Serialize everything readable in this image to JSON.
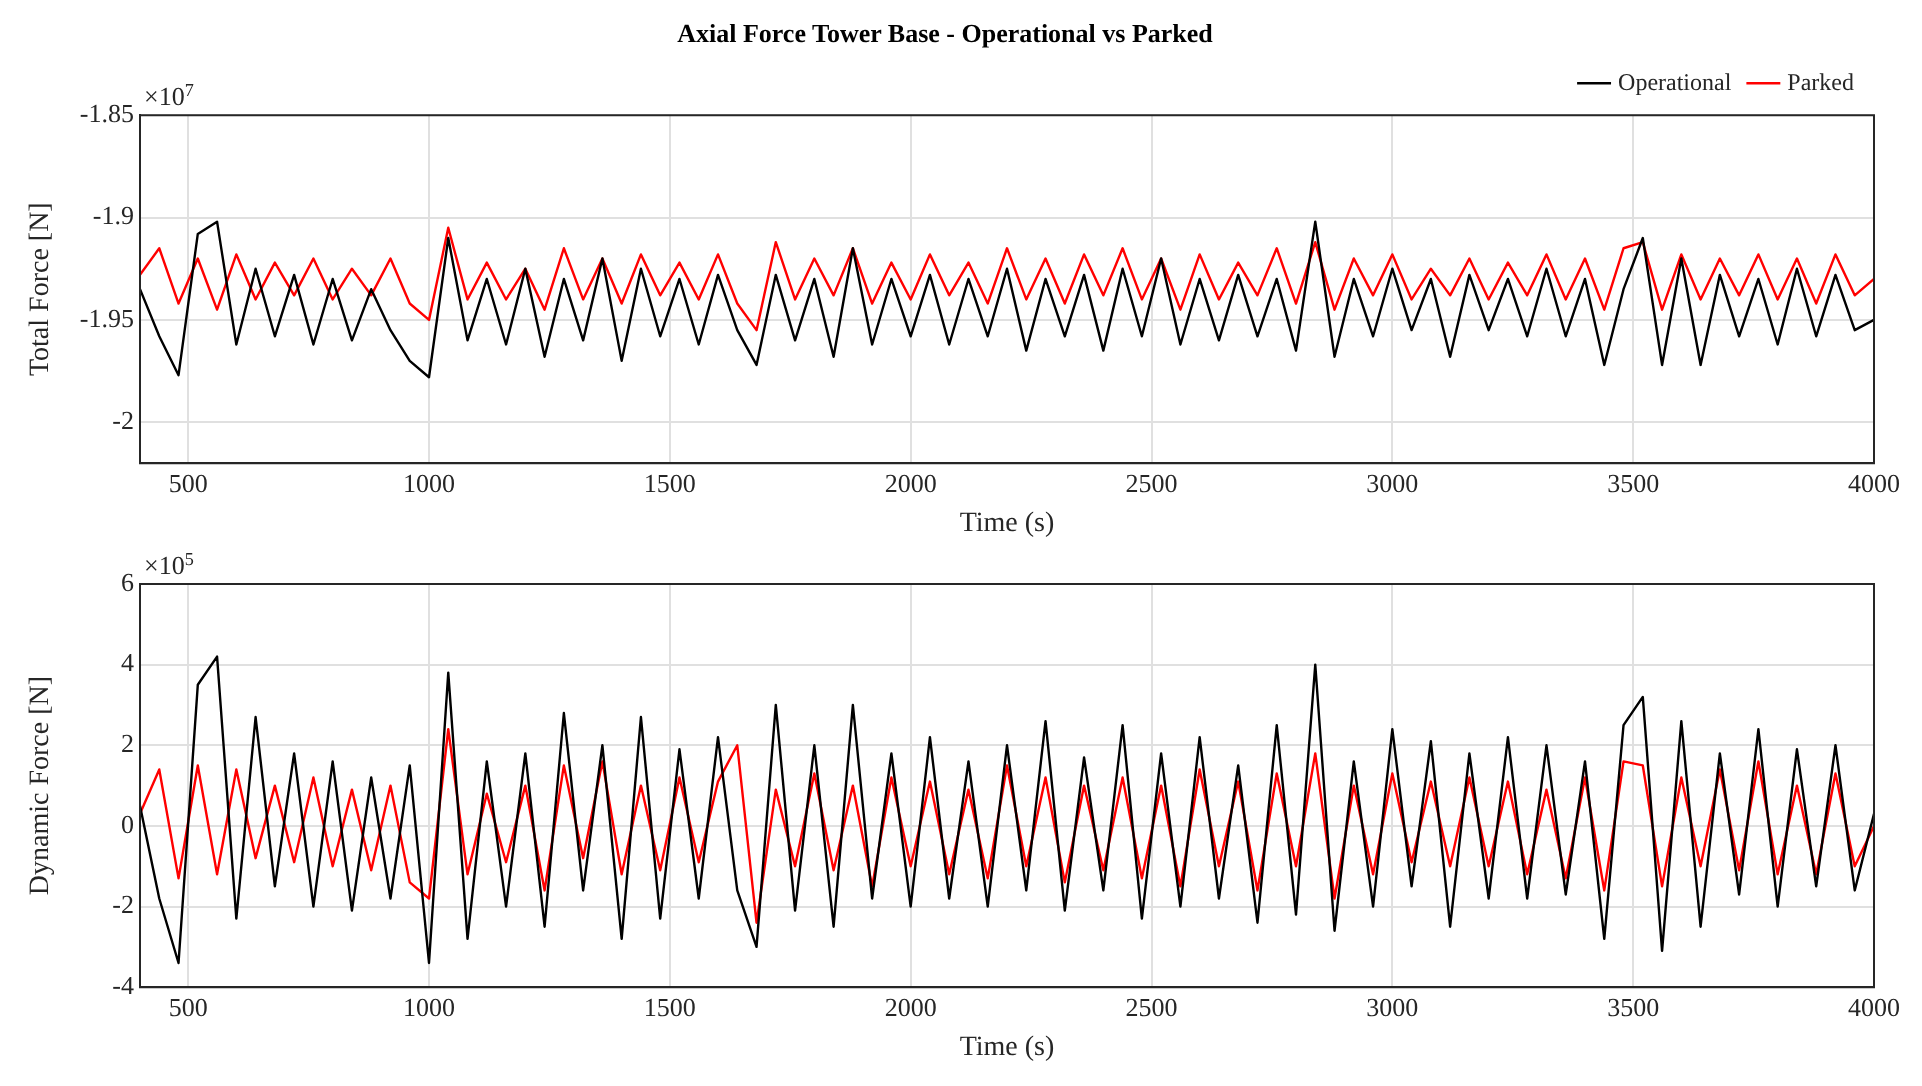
{
  "chart_data": [
    {
      "type": "line",
      "title": "Axial Force Tower Base - Operational vs Parked",
      "xlabel": "Time (s)",
      "ylabel": "Total Force [N]",
      "annotations": [
        "×10$^{7}$"
      ],
      "x": [
        400,
        440,
        480,
        520,
        560,
        600,
        640,
        680,
        720,
        760,
        800,
        840,
        880,
        920,
        960,
        1000,
        1040,
        1080,
        1120,
        1160,
        1200,
        1240,
        1280,
        1320,
        1360,
        1400,
        1440,
        1480,
        1520,
        1560,
        1600,
        1640,
        1680,
        1720,
        1760,
        1800,
        1840,
        1880,
        1920,
        1960,
        2000,
        2040,
        2080,
        2120,
        2160,
        2200,
        2240,
        2280,
        2320,
        2360,
        2400,
        2440,
        2480,
        2520,
        2560,
        2600,
        2640,
        2680,
        2720,
        2760,
        2800,
        2840,
        2880,
        2920,
        2960,
        3000,
        3040,
        3080,
        3120,
        3160,
        3200,
        3240,
        3280,
        3320,
        3360,
        3400,
        3440,
        3480,
        3520,
        3560,
        3600,
        3640,
        3680,
        3720,
        3760,
        3800,
        3840,
        3880,
        3920,
        3960,
        4000
      ],
      "series": [
        {
          "name": "Operational",
          "color": "#000000",
          "values": [
            -1.935,
            -1.958,
            -1.977,
            -1.908,
            -1.902,
            -1.962,
            -1.925,
            -1.958,
            -1.928,
            -1.962,
            -1.93,
            -1.96,
            -1.935,
            -1.955,
            -1.97,
            -1.978,
            -1.91,
            -1.96,
            -1.93,
            -1.962,
            -1.925,
            -1.968,
            -1.93,
            -1.96,
            -1.92,
            -1.97,
            -1.925,
            -1.958,
            -1.93,
            -1.962,
            -1.928,
            -1.955,
            -1.972,
            -1.928,
            -1.96,
            -1.93,
            -1.968,
            -1.915,
            -1.962,
            -1.93,
            -1.958,
            -1.928,
            -1.962,
            -1.93,
            -1.958,
            -1.925,
            -1.965,
            -1.93,
            -1.958,
            -1.928,
            -1.965,
            -1.925,
            -1.958,
            -1.92,
            -1.962,
            -1.93,
            -1.96,
            -1.928,
            -1.958,
            -1.93,
            -1.965,
            -1.902,
            -1.968,
            -1.93,
            -1.958,
            -1.925,
            -1.955,
            -1.93,
            -1.968,
            -1.928,
            -1.955,
            -1.93,
            -1.958,
            -1.925,
            -1.958,
            -1.93,
            -1.972,
            -1.935,
            -1.91,
            -1.972,
            -1.92,
            -1.972,
            -1.928,
            -1.958,
            -1.93,
            -1.962,
            -1.925,
            -1.958,
            -1.928,
            -1.955,
            -1.95
          ]
        },
        {
          "name": "Parked",
          "color": "#ff0000",
          "values": [
            -1.928,
            -1.915,
            -1.942,
            -1.92,
            -1.945,
            -1.918,
            -1.94,
            -1.922,
            -1.938,
            -1.92,
            -1.94,
            -1.925,
            -1.938,
            -1.92,
            -1.942,
            -1.95,
            -1.905,
            -1.94,
            -1.922,
            -1.94,
            -1.925,
            -1.945,
            -1.915,
            -1.94,
            -1.92,
            -1.942,
            -1.918,
            -1.938,
            -1.922,
            -1.94,
            -1.918,
            -1.942,
            -1.955,
            -1.912,
            -1.94,
            -1.92,
            -1.938,
            -1.915,
            -1.942,
            -1.922,
            -1.94,
            -1.918,
            -1.938,
            -1.922,
            -1.942,
            -1.915,
            -1.94,
            -1.92,
            -1.942,
            -1.918,
            -1.938,
            -1.915,
            -1.94,
            -1.92,
            -1.945,
            -1.918,
            -1.94,
            -1.922,
            -1.938,
            -1.915,
            -1.942,
            -1.912,
            -1.945,
            -1.92,
            -1.938,
            -1.918,
            -1.94,
            -1.925,
            -1.938,
            -1.92,
            -1.94,
            -1.922,
            -1.938,
            -1.918,
            -1.94,
            -1.92,
            -1.945,
            -1.915,
            -1.912,
            -1.945,
            -1.918,
            -1.94,
            -1.92,
            -1.938,
            -1.918,
            -1.94,
            -1.92,
            -1.942,
            -1.918,
            -1.938,
            -1.93
          ]
        }
      ],
      "xlim": [
        400,
        4000
      ],
      "xticks": [
        500,
        1000,
        1500,
        2000,
        2500,
        3000,
        3500,
        4000
      ],
      "ylim": [
        -2.02,
        -1.85
      ],
      "yticks": [
        -2,
        -1.95,
        -1.9,
        -1.85
      ],
      "grid": true,
      "legend": "top right"
    },
    {
      "type": "line",
      "xlabel": "Time (s)",
      "ylabel": "Dynamic Force [N]",
      "annotations": [
        "×10$^{5}$"
      ],
      "x": [
        400,
        440,
        480,
        520,
        560,
        600,
        640,
        680,
        720,
        760,
        800,
        840,
        880,
        920,
        960,
        1000,
        1040,
        1080,
        1120,
        1160,
        1200,
        1240,
        1280,
        1320,
        1360,
        1400,
        1440,
        1480,
        1520,
        1560,
        1600,
        1640,
        1680,
        1720,
        1760,
        1800,
        1840,
        1880,
        1920,
        1960,
        2000,
        2040,
        2080,
        2120,
        2160,
        2200,
        2240,
        2280,
        2320,
        2360,
        2400,
        2440,
        2480,
        2520,
        2560,
        2600,
        2640,
        2680,
        2720,
        2760,
        2800,
        2840,
        2880,
        2920,
        2960,
        3000,
        3040,
        3080,
        3120,
        3160,
        3200,
        3240,
        3280,
        3320,
        3360,
        3400,
        3440,
        3480,
        3520,
        3560,
        3600,
        3640,
        3680,
        3720,
        3760,
        3800,
        3840,
        3880,
        3920,
        3960,
        4000
      ],
      "series": [
        {
          "color": "#000000",
          "values": [
            0.5,
            -1.8,
            -3.4,
            3.5,
            4.2,
            -2.3,
            2.7,
            -1.5,
            1.8,
            -2.0,
            1.6,
            -2.1,
            1.2,
            -1.8,
            1.5,
            -3.4,
            3.8,
            -2.8,
            1.6,
            -2.0,
            1.8,
            -2.5,
            2.8,
            -1.6,
            2.0,
            -2.8,
            2.7,
            -2.3,
            1.9,
            -1.8,
            2.2,
            -1.6,
            -3.0,
            3.0,
            -2.1,
            2.0,
            -2.5,
            3.0,
            -1.8,
            1.8,
            -2.0,
            2.2,
            -1.8,
            1.6,
            -2.0,
            2.0,
            -1.6,
            2.6,
            -2.1,
            1.7,
            -1.6,
            2.5,
            -2.3,
            1.8,
            -2.0,
            2.2,
            -1.8,
            1.5,
            -2.4,
            2.5,
            -2.2,
            4.0,
            -2.6,
            1.6,
            -2.0,
            2.4,
            -1.5,
            2.1,
            -2.5,
            1.8,
            -1.8,
            2.2,
            -1.8,
            2.0,
            -1.7,
            1.6,
            -2.8,
            2.5,
            3.2,
            -3.1,
            2.6,
            -2.5,
            1.8,
            -1.7,
            2.4,
            -2.0,
            1.9,
            -1.5,
            2.0,
            -1.6,
            0.3
          ]
        },
        {
          "color": "#ff0000",
          "values": [
            0.3,
            1.4,
            -1.3,
            1.5,
            -1.2,
            1.4,
            -0.8,
            1.0,
            -0.9,
            1.2,
            -1.0,
            0.9,
            -1.1,
            1.0,
            -1.4,
            -1.8,
            2.4,
            -1.2,
            0.8,
            -0.9,
            1.0,
            -1.6,
            1.5,
            -0.8,
            1.6,
            -1.2,
            1.0,
            -1.1,
            1.2,
            -0.9,
            1.1,
            2.0,
            -2.4,
            0.9,
            -1.0,
            1.3,
            -1.1,
            1.0,
            -1.5,
            1.2,
            -1.0,
            1.1,
            -1.2,
            0.9,
            -1.3,
            1.5,
            -1.0,
            1.2,
            -1.4,
            1.0,
            -1.1,
            1.2,
            -1.3,
            1.0,
            -1.5,
            1.4,
            -1.0,
            1.1,
            -1.6,
            1.3,
            -1.0,
            1.8,
            -1.8,
            1.0,
            -1.2,
            1.3,
            -0.9,
            1.1,
            -1.0,
            1.2,
            -1.0,
            1.1,
            -1.2,
            0.9,
            -1.3,
            1.2,
            -1.6,
            1.6,
            1.5,
            -1.5,
            1.2,
            -1.0,
            1.4,
            -1.1,
            1.6,
            -1.2,
            1.0,
            -1.2,
            1.3,
            -1.0,
            0.0
          ]
        }
      ],
      "xlim": [
        400,
        4000
      ],
      "xticks": [
        500,
        1000,
        1500,
        2000,
        2500,
        3000,
        3500,
        4000
      ],
      "ylim": [
        -4,
        6
      ],
      "yticks": [
        -4,
        -2,
        0,
        2,
        4,
        6
      ],
      "grid": true
    }
  ]
}
